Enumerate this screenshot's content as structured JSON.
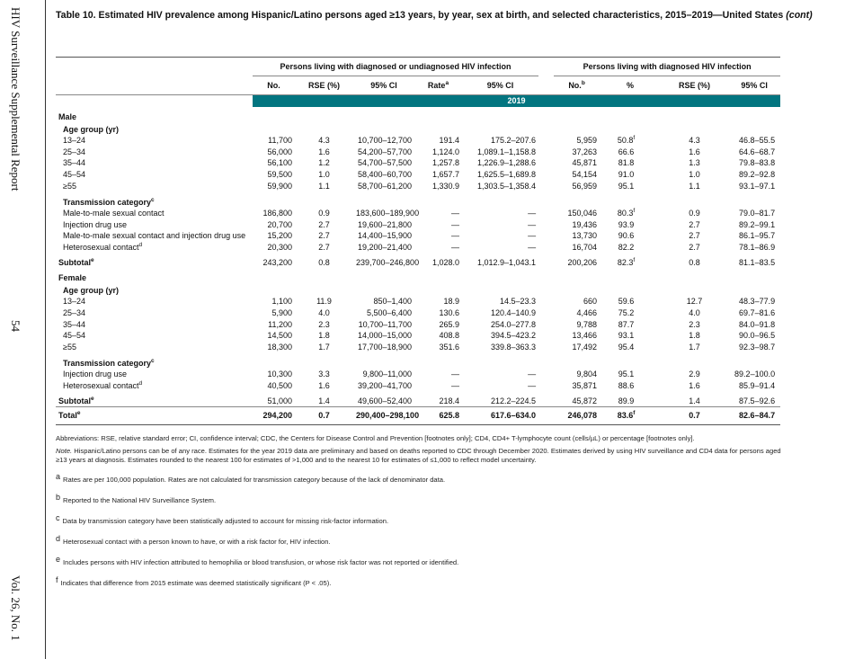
{
  "side": {
    "report": "HIV Surveillance Supplemental Report",
    "page": "54",
    "volume": "Vol. 26, No. 1"
  },
  "title": {
    "main": "Table 10. Estimated HIV prevalence among Hispanic/Latino persons aged ≥13 years, by year, sex at birth, and selected characteristics, 2015–2019—United States",
    "cont": "(cont)"
  },
  "header": {
    "group1": "Persons living with diagnosed or undiagnosed HIV infection",
    "group2": "Persons living with diagnosed HIV infection",
    "columns": [
      {
        "label": "No.",
        "sup": ""
      },
      {
        "label": "RSE (%)",
        "sup": ""
      },
      {
        "label": "95% CI",
        "sup": ""
      },
      {
        "label": "Rate",
        "sup": "a"
      },
      {
        "label": "95% CI",
        "sup": ""
      },
      {
        "label": "No.",
        "sup": "b"
      },
      {
        "label": "%",
        "sup": ""
      },
      {
        "label": "RSE (%)",
        "sup": ""
      },
      {
        "label": "95% CI",
        "sup": ""
      }
    ],
    "year": "2019"
  },
  "rows": [
    {
      "type": "sec",
      "label": "Male"
    },
    {
      "type": "sub",
      "label": "Age group (yr)"
    },
    {
      "type": "dat",
      "label": "13–24",
      "v": [
        "11,700",
        "4.3",
        "10,700–12,700",
        "191.4",
        "175.2–207.6",
        "5,959",
        "50.8",
        "4.3",
        "46.8–55.5"
      ],
      "pctSup": "f"
    },
    {
      "type": "dat",
      "label": "25–34",
      "v": [
        "56,000",
        "1.6",
        "54,200–57,700",
        "1,124.0",
        "1,089.1–1,158.8",
        "37,263",
        "66.6",
        "1.6",
        "64.6–68.7"
      ]
    },
    {
      "type": "dat",
      "label": "35–44",
      "v": [
        "56,100",
        "1.2",
        "54,700–57,500",
        "1,257.8",
        "1,226.9–1,288.6",
        "45,871",
        "81.8",
        "1.3",
        "79.8–83.8"
      ]
    },
    {
      "type": "dat",
      "label": "45–54",
      "v": [
        "59,500",
        "1.0",
        "58,400–60,700",
        "1,657.7",
        "1,625.5–1,689.8",
        "54,154",
        "91.0",
        "1.0",
        "89.2–92.8"
      ]
    },
    {
      "type": "dat",
      "label": "≥55",
      "v": [
        "59,900",
        "1.1",
        "58,700–61,200",
        "1,330.9",
        "1,303.5–1,358.4",
        "56,959",
        "95.1",
        "1.1",
        "93.1–97.1"
      ]
    },
    {
      "type": "sub gap",
      "label": "Transmission category",
      "sup": "c"
    },
    {
      "type": "dat",
      "label": "Male-to-male sexual contact",
      "v": [
        "186,800",
        "0.9",
        "183,600–189,900",
        "—",
        "—",
        "150,046",
        "80.3",
        "0.9",
        "79.0–81.7"
      ],
      "pctSup": "f"
    },
    {
      "type": "dat",
      "label": "Injection drug use",
      "v": [
        "20,700",
        "2.7",
        "19,600–21,800",
        "—",
        "—",
        "19,436",
        "93.9",
        "2.7",
        "89.2–99.1"
      ]
    },
    {
      "type": "dat",
      "label": "Male-to-male sexual contact and injection drug use",
      "v": [
        "15,200",
        "2.7",
        "14,400–15,900",
        "—",
        "—",
        "13,730",
        "90.6",
        "2.7",
        "86.1–95.7"
      ]
    },
    {
      "type": "dat",
      "label": "Heterosexual contact",
      "sup": "d",
      "v": [
        "20,300",
        "2.7",
        "19,200–21,400",
        "—",
        "—",
        "16,704",
        "82.2",
        "2.7",
        "78.1–86.9"
      ]
    },
    {
      "type": "subt",
      "label": "Subtotal",
      "sup": "e",
      "v": [
        "243,200",
        "0.8",
        "239,700–246,800",
        "1,028.0",
        "1,012.9–1,043.1",
        "200,206",
        "82.3",
        "0.8",
        "81.1–83.5"
      ],
      "pctSup": "f"
    },
    {
      "type": "sec",
      "label": "Female"
    },
    {
      "type": "sub",
      "label": "Age group (yr)"
    },
    {
      "type": "dat",
      "label": "13–24",
      "v": [
        "1,100",
        "11.9",
        "850–1,400",
        "18.9",
        "14.5–23.3",
        "660",
        "59.6",
        "12.7",
        "48.3–77.9"
      ]
    },
    {
      "type": "dat",
      "label": "25–34",
      "v": [
        "5,900",
        "4.0",
        "5,500–6,400",
        "130.6",
        "120.4–140.9",
        "4,466",
        "75.2",
        "4.0",
        "69.7–81.6"
      ]
    },
    {
      "type": "dat",
      "label": "35–44",
      "v": [
        "11,200",
        "2.3",
        "10,700–11,700",
        "265.9",
        "254.0–277.8",
        "9,788",
        "87.7",
        "2.3",
        "84.0–91.8"
      ]
    },
    {
      "type": "dat",
      "label": "45–54",
      "v": [
        "14,500",
        "1.8",
        "14,000–15,000",
        "408.8",
        "394.5–423.2",
        "13,466",
        "93.1",
        "1.8",
        "90.0–96.5"
      ]
    },
    {
      "type": "dat",
      "label": "≥55",
      "v": [
        "18,300",
        "1.7",
        "17,700–18,900",
        "351.6",
        "339.8–363.3",
        "17,492",
        "95.4",
        "1.7",
        "92.3–98.7"
      ]
    },
    {
      "type": "sub gap",
      "label": "Transmission category",
      "sup": "c"
    },
    {
      "type": "dat",
      "label": "Injection drug use",
      "v": [
        "10,300",
        "3.3",
        "9,800–11,000",
        "—",
        "—",
        "9,804",
        "95.1",
        "2.9",
        "89.2–100.0"
      ]
    },
    {
      "type": "dat",
      "label": "Heterosexual contact",
      "sup": "d",
      "v": [
        "40,500",
        "1.6",
        "39,200–41,700",
        "—",
        "—",
        "35,871",
        "88.6",
        "1.6",
        "85.9–91.4"
      ]
    },
    {
      "type": "subt",
      "label": "Subtotal",
      "sup": "e",
      "v": [
        "51,000",
        "1.4",
        "49,600–52,400",
        "218.4",
        "212.2–224.5",
        "45,872",
        "89.9",
        "1.4",
        "87.5–92.6"
      ]
    },
    {
      "type": "tot",
      "label": "Total",
      "sup": "e",
      "v": [
        "294,200",
        "0.7",
        "290,400–298,100",
        "625.8",
        "617.6–634.0",
        "246,078",
        "83.6",
        "0.7",
        "82.6–84.7"
      ],
      "pctSup": "f"
    }
  ],
  "notes": {
    "abbreviations": "Abbreviations: RSE, relative standard error; CI, confidence interval; CDC, the Centers for Disease Control and Prevention [footnotes only]; CD4, CD4+ T-lymphocyte count (cells/µL) or percentage [footnotes only].",
    "note_label": "Note.",
    "note": " Hispanic/Latino persons can be of any race. Estimates for the year 2019 data are preliminary and based on deaths reported to CDC through December 2020. Estimates derived by using HIV surveillance and CD4 data for persons aged ≥13 years at diagnosis. Estimates rounded to the nearest 100 for estimates of >1,000 and to the nearest 10 for estimates of ≤1,000 to reflect model uncertainty.",
    "footnotes": [
      {
        "mark": "a",
        "text": "Rates are per 100,000 population. Rates are not calculated for transmission category because of the lack of denominator data."
      },
      {
        "mark": "b",
        "text": "Reported to the National HIV Surveillance System."
      },
      {
        "mark": "c",
        "text": "Data by transmission category have been statistically adjusted to account for missing risk-factor information."
      },
      {
        "mark": "d",
        "text": "Heterosexual contact with a person known to have, or with a risk factor for, HIV infection."
      },
      {
        "mark": "e",
        "text": "Includes persons with HIV infection attributed to hemophilia or blood transfusion, or whose risk factor was not reported or identified."
      },
      {
        "mark": "f",
        "text": "Indicates that difference from 2015 estimate was deemed statistically significant (P < .05)."
      }
    ]
  },
  "colors": {
    "band": "#027580"
  }
}
